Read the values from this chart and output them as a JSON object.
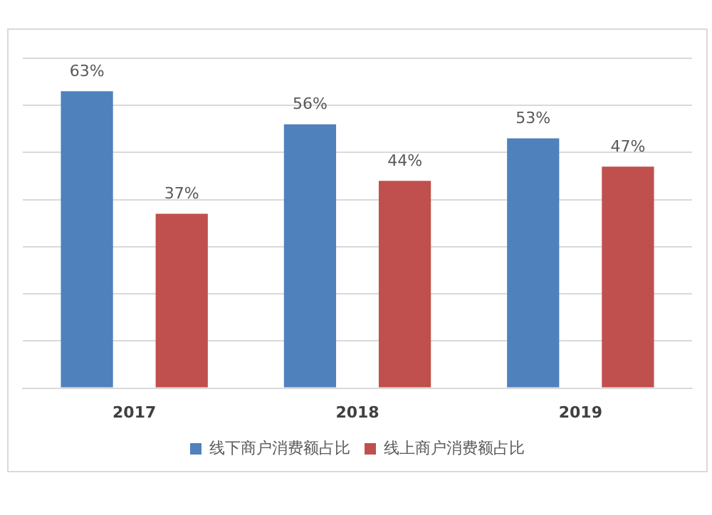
{
  "chart_data": {
    "type": "bar",
    "categories": [
      "2017",
      "2018",
      "2019"
    ],
    "series": [
      {
        "name": "线下商户消费额占比",
        "color": "#4f81bd",
        "values": [
          63,
          56,
          53
        ],
        "value_labels": [
          "63%",
          "56%",
          "53%"
        ]
      },
      {
        "name": "线上商户消费额占比",
        "color": "#c0504d",
        "values": [
          37,
          44,
          47
        ],
        "value_labels": [
          "37%",
          "44%",
          "47%"
        ]
      }
    ],
    "ylim": [
      0,
      70
    ],
    "yticks": [
      {
        "value": 0,
        "label": null
      },
      {
        "value": 10,
        "label": null
      },
      {
        "value": 20,
        "label": null
      },
      {
        "value": 30,
        "label": null
      },
      {
        "value": 40,
        "label": null
      },
      {
        "value": 50,
        "label": null
      },
      {
        "value": 60,
        "label": null
      },
      {
        "value": 70,
        "label": null
      }
    ],
    "tick_labels": "x",
    "grid": "y",
    "legend": "bottom"
  }
}
